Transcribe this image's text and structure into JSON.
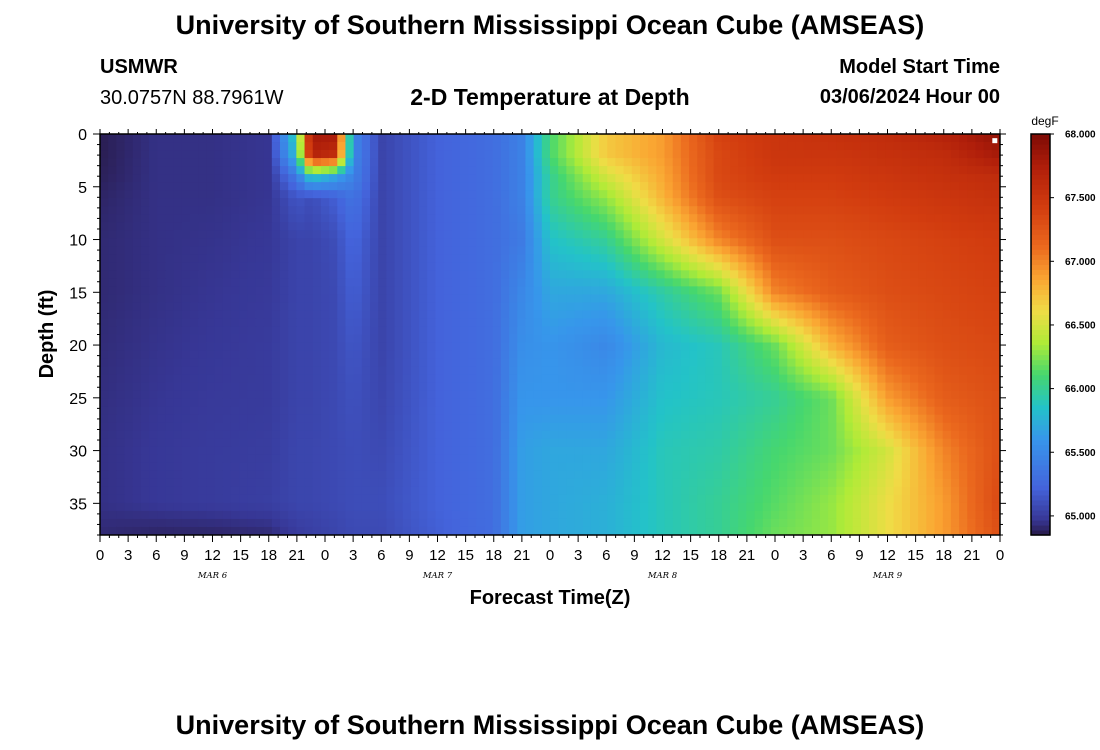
{
  "page": {
    "title": "University of Southern Mississippi Ocean Cube (AMSEAS)",
    "footer_title": "University of Southern Mississippi Ocean Cube (AMSEAS)",
    "station_id": "USMWR",
    "station_coords": "30.0757N  88.7961W",
    "chart_heading": "2-D Temperature at Depth",
    "model_start_label": "Model Start Time",
    "model_start_value": "03/06/2024 Hour 00"
  },
  "chart_data": {
    "type": "heatmap",
    "title": "2-D Temperature at Depth",
    "xlabel": "Forecast Time(Z)",
    "ylabel": "Depth (ft)",
    "x_tick_labels": [
      "0",
      "3",
      "6",
      "9",
      "12",
      "15",
      "18",
      "21",
      "0",
      "3",
      "6",
      "9",
      "12",
      "15",
      "18",
      "21",
      "0",
      "3",
      "6",
      "9",
      "12",
      "15",
      "18",
      "21",
      "0",
      "3",
      "6",
      "9",
      "12",
      "15",
      "18",
      "21",
      "0"
    ],
    "x_range_hours": [
      0,
      96
    ],
    "day_labels": [
      {
        "label": "MAR 6",
        "hour": 12
      },
      {
        "label": "MAR 7",
        "hour": 36
      },
      {
        "label": "MAR 8",
        "hour": 60
      },
      {
        "label": "MAR 9",
        "hour": 84
      }
    ],
    "y_tick_labels": [
      "0",
      "5",
      "10",
      "15",
      "20",
      "25",
      "30",
      "35"
    ],
    "ylim": [
      0,
      38
    ],
    "y_inverted": true,
    "colorbar": {
      "unit": "degF",
      "min": 64.85,
      "max": 68.0,
      "tick_labels": [
        "68.000",
        "67.500",
        "67.000",
        "66.500",
        "66.000",
        "65.500",
        "65.000"
      ],
      "tick_values": [
        68.0,
        67.5,
        67.0,
        66.5,
        66.0,
        65.5,
        65.0
      ]
    },
    "grid_hours": [
      0,
      6,
      12,
      18,
      21,
      22.5,
      25,
      27,
      30,
      36,
      42,
      45,
      48,
      54,
      60,
      66,
      72,
      78,
      84,
      90,
      96
    ],
    "grid_depths": [
      0,
      2,
      4,
      6,
      10,
      15,
      20,
      25,
      30,
      35,
      38
    ],
    "values": [
      [
        64.87,
        64.95,
        64.95,
        64.97,
        66.0,
        67.8,
        67.8,
        65.5,
        65.05,
        65.22,
        65.3,
        65.45,
        66.1,
        66.7,
        66.9,
        67.4,
        67.5,
        67.55,
        67.6,
        67.7,
        67.9
      ],
      [
        64.87,
        64.95,
        64.95,
        64.97,
        65.85,
        67.7,
        67.6,
        65.5,
        65.05,
        65.22,
        65.3,
        65.45,
        66.1,
        66.7,
        66.9,
        67.35,
        67.5,
        67.5,
        67.55,
        67.6,
        67.8
      ],
      [
        64.88,
        64.95,
        64.95,
        64.97,
        65.4,
        65.9,
        65.7,
        65.45,
        65.05,
        65.22,
        65.3,
        65.45,
        66.0,
        66.5,
        66.85,
        67.35,
        67.45,
        67.45,
        67.5,
        67.55,
        67.6
      ],
      [
        64.9,
        64.95,
        64.95,
        64.97,
        65.15,
        65.1,
        65.2,
        65.35,
        65.05,
        65.22,
        65.3,
        65.45,
        66.0,
        66.3,
        66.8,
        67.3,
        67.4,
        67.4,
        67.45,
        67.5,
        67.55
      ],
      [
        64.92,
        64.95,
        64.96,
        64.98,
        65.05,
        65.05,
        65.1,
        65.25,
        65.05,
        65.22,
        65.3,
        65.4,
        65.85,
        66.0,
        66.5,
        67.0,
        67.3,
        67.3,
        67.35,
        67.4,
        67.45
      ],
      [
        64.92,
        64.95,
        64.97,
        64.99,
        65.05,
        65.05,
        65.08,
        65.2,
        65.05,
        65.22,
        65.3,
        65.5,
        65.7,
        65.7,
        65.95,
        66.2,
        67.0,
        67.2,
        67.3,
        67.35,
        67.4
      ],
      [
        64.93,
        64.96,
        64.98,
        65.0,
        65.05,
        65.05,
        65.08,
        65.15,
        65.05,
        65.22,
        65.3,
        65.55,
        65.6,
        65.5,
        65.8,
        65.9,
        66.2,
        66.8,
        67.2,
        67.3,
        67.35
      ],
      [
        64.94,
        64.97,
        64.99,
        65.0,
        65.05,
        65.05,
        65.08,
        65.12,
        65.06,
        65.22,
        65.3,
        65.6,
        65.6,
        65.6,
        65.85,
        65.9,
        66.0,
        66.2,
        66.9,
        67.2,
        67.3
      ],
      [
        64.95,
        64.98,
        65.0,
        65.01,
        65.06,
        65.06,
        65.08,
        65.1,
        65.08,
        65.22,
        65.3,
        65.65,
        65.7,
        65.7,
        65.9,
        65.95,
        66.1,
        66.2,
        66.5,
        67.0,
        67.3
      ],
      [
        64.95,
        64.98,
        65.0,
        65.02,
        65.06,
        65.06,
        65.08,
        65.1,
        65.1,
        65.22,
        65.3,
        65.65,
        65.7,
        65.75,
        65.9,
        66.0,
        66.15,
        66.3,
        66.6,
        66.9,
        67.35
      ],
      [
        64.92,
        64.9,
        64.9,
        64.92,
        65.0,
        65.02,
        65.05,
        65.08,
        65.08,
        65.2,
        65.3,
        65.65,
        65.7,
        65.75,
        65.9,
        66.0,
        66.2,
        66.3,
        66.6,
        66.9,
        67.3
      ]
    ],
    "note_marker": {
      "hour": 95.5,
      "depth": 0.3
    }
  }
}
